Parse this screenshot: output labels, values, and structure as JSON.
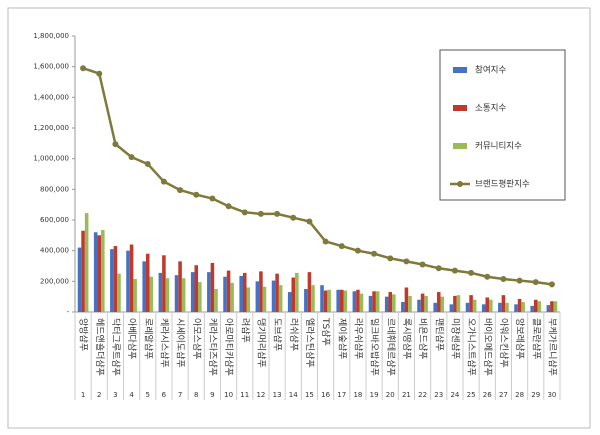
{
  "chart_data": {
    "type": "bar_line",
    "categories": [
      "앙방샴푸",
      "헤드앤숄더샴푸",
      "닥터그루트샴푸",
      "아베다샴푸",
      "로레알샴푸",
      "케라시스샴푸",
      "시세이도샴푸",
      "아모스샴푸",
      "케라스타즈샴푸",
      "아로마티카샴푸",
      "려샴푸",
      "댕기머리샴푸",
      "도브샴푸",
      "러쉬샴푸",
      "엘라스틴샴푸",
      "TS샴푸",
      "제이숲샴푸",
      "라우쉬샴푸",
      "밀크바오밥샴푸",
      "르네휘테르샴푸",
      "록시땅샴푸",
      "비욘드샴푸",
      "팬틴샴푸",
      "미쟝센샴푸",
      "오가니스트샴푸",
      "바이오메드샴푸",
      "아워스킨샴푸",
      "앙보레샴푸",
      "클로란샴푸",
      "부케가르니샴푸"
    ],
    "ranks": [
      1,
      2,
      3,
      4,
      5,
      6,
      7,
      8,
      9,
      10,
      11,
      12,
      13,
      14,
      15,
      16,
      17,
      18,
      19,
      20,
      21,
      22,
      23,
      24,
      25,
      26,
      27,
      28,
      29,
      30
    ],
    "series": [
      {
        "name": "참여지수",
        "color": "#4472c4",
        "kind": "bar",
        "values": [
          420000,
          520000,
          410000,
          400000,
          330000,
          255000,
          240000,
          260000,
          260000,
          230000,
          235000,
          200000,
          205000,
          130000,
          150000,
          175000,
          145000,
          135000,
          105000,
          100000,
          65000,
          80000,
          60000,
          50000,
          60000,
          50000,
          60000,
          50000,
          40000,
          45000
        ]
      },
      {
        "name": "소통지수",
        "color": "#c0392b",
        "kind": "bar",
        "values": [
          530000,
          500000,
          430000,
          440000,
          380000,
          370000,
          330000,
          305000,
          320000,
          270000,
          255000,
          265000,
          250000,
          225000,
          260000,
          140000,
          145000,
          145000,
          135000,
          130000,
          160000,
          120000,
          130000,
          105000,
          110000,
          95000,
          110000,
          85000,
          80000,
          70000
        ]
      },
      {
        "name": "커뮤니티지수",
        "color": "#9bbb59",
        "kind": "bar",
        "values": [
          645000,
          535000,
          250000,
          215000,
          230000,
          220000,
          220000,
          195000,
          150000,
          190000,
          160000,
          165000,
          175000,
          255000,
          175000,
          145000,
          140000,
          120000,
          135000,
          115000,
          105000,
          105000,
          100000,
          110000,
          80000,
          80000,
          60000,
          65000,
          70000,
          70000
        ]
      },
      {
        "name": "브랜드평판지수",
        "color": "#7f7a3c",
        "kind": "line",
        "values": [
          1590000,
          1555000,
          1095000,
          1010000,
          965000,
          850000,
          795000,
          765000,
          740000,
          690000,
          650000,
          640000,
          640000,
          615000,
          590000,
          460000,
          430000,
          400000,
          380000,
          350000,
          330000,
          310000,
          285000,
          270000,
          255000,
          230000,
          215000,
          205000,
          195000,
          180000
        ]
      }
    ],
    "ylim": [
      0,
      1800000
    ],
    "yticks": [
      {
        "value": 0,
        "label": "-"
      },
      {
        "value": 200000,
        "label": "200,000"
      },
      {
        "value": 400000,
        "label": "400,000"
      },
      {
        "value": 600000,
        "label": "600,000"
      },
      {
        "value": 800000,
        "label": "800,000"
      },
      {
        "value": 1000000,
        "label": "1,000,000"
      },
      {
        "value": 1200000,
        "label": "1,200,000"
      },
      {
        "value": 1400000,
        "label": "1,400,000"
      },
      {
        "value": 1600000,
        "label": "1,600,000"
      },
      {
        "value": 1800000,
        "label": "1,800,000"
      }
    ],
    "legend": "right"
  }
}
